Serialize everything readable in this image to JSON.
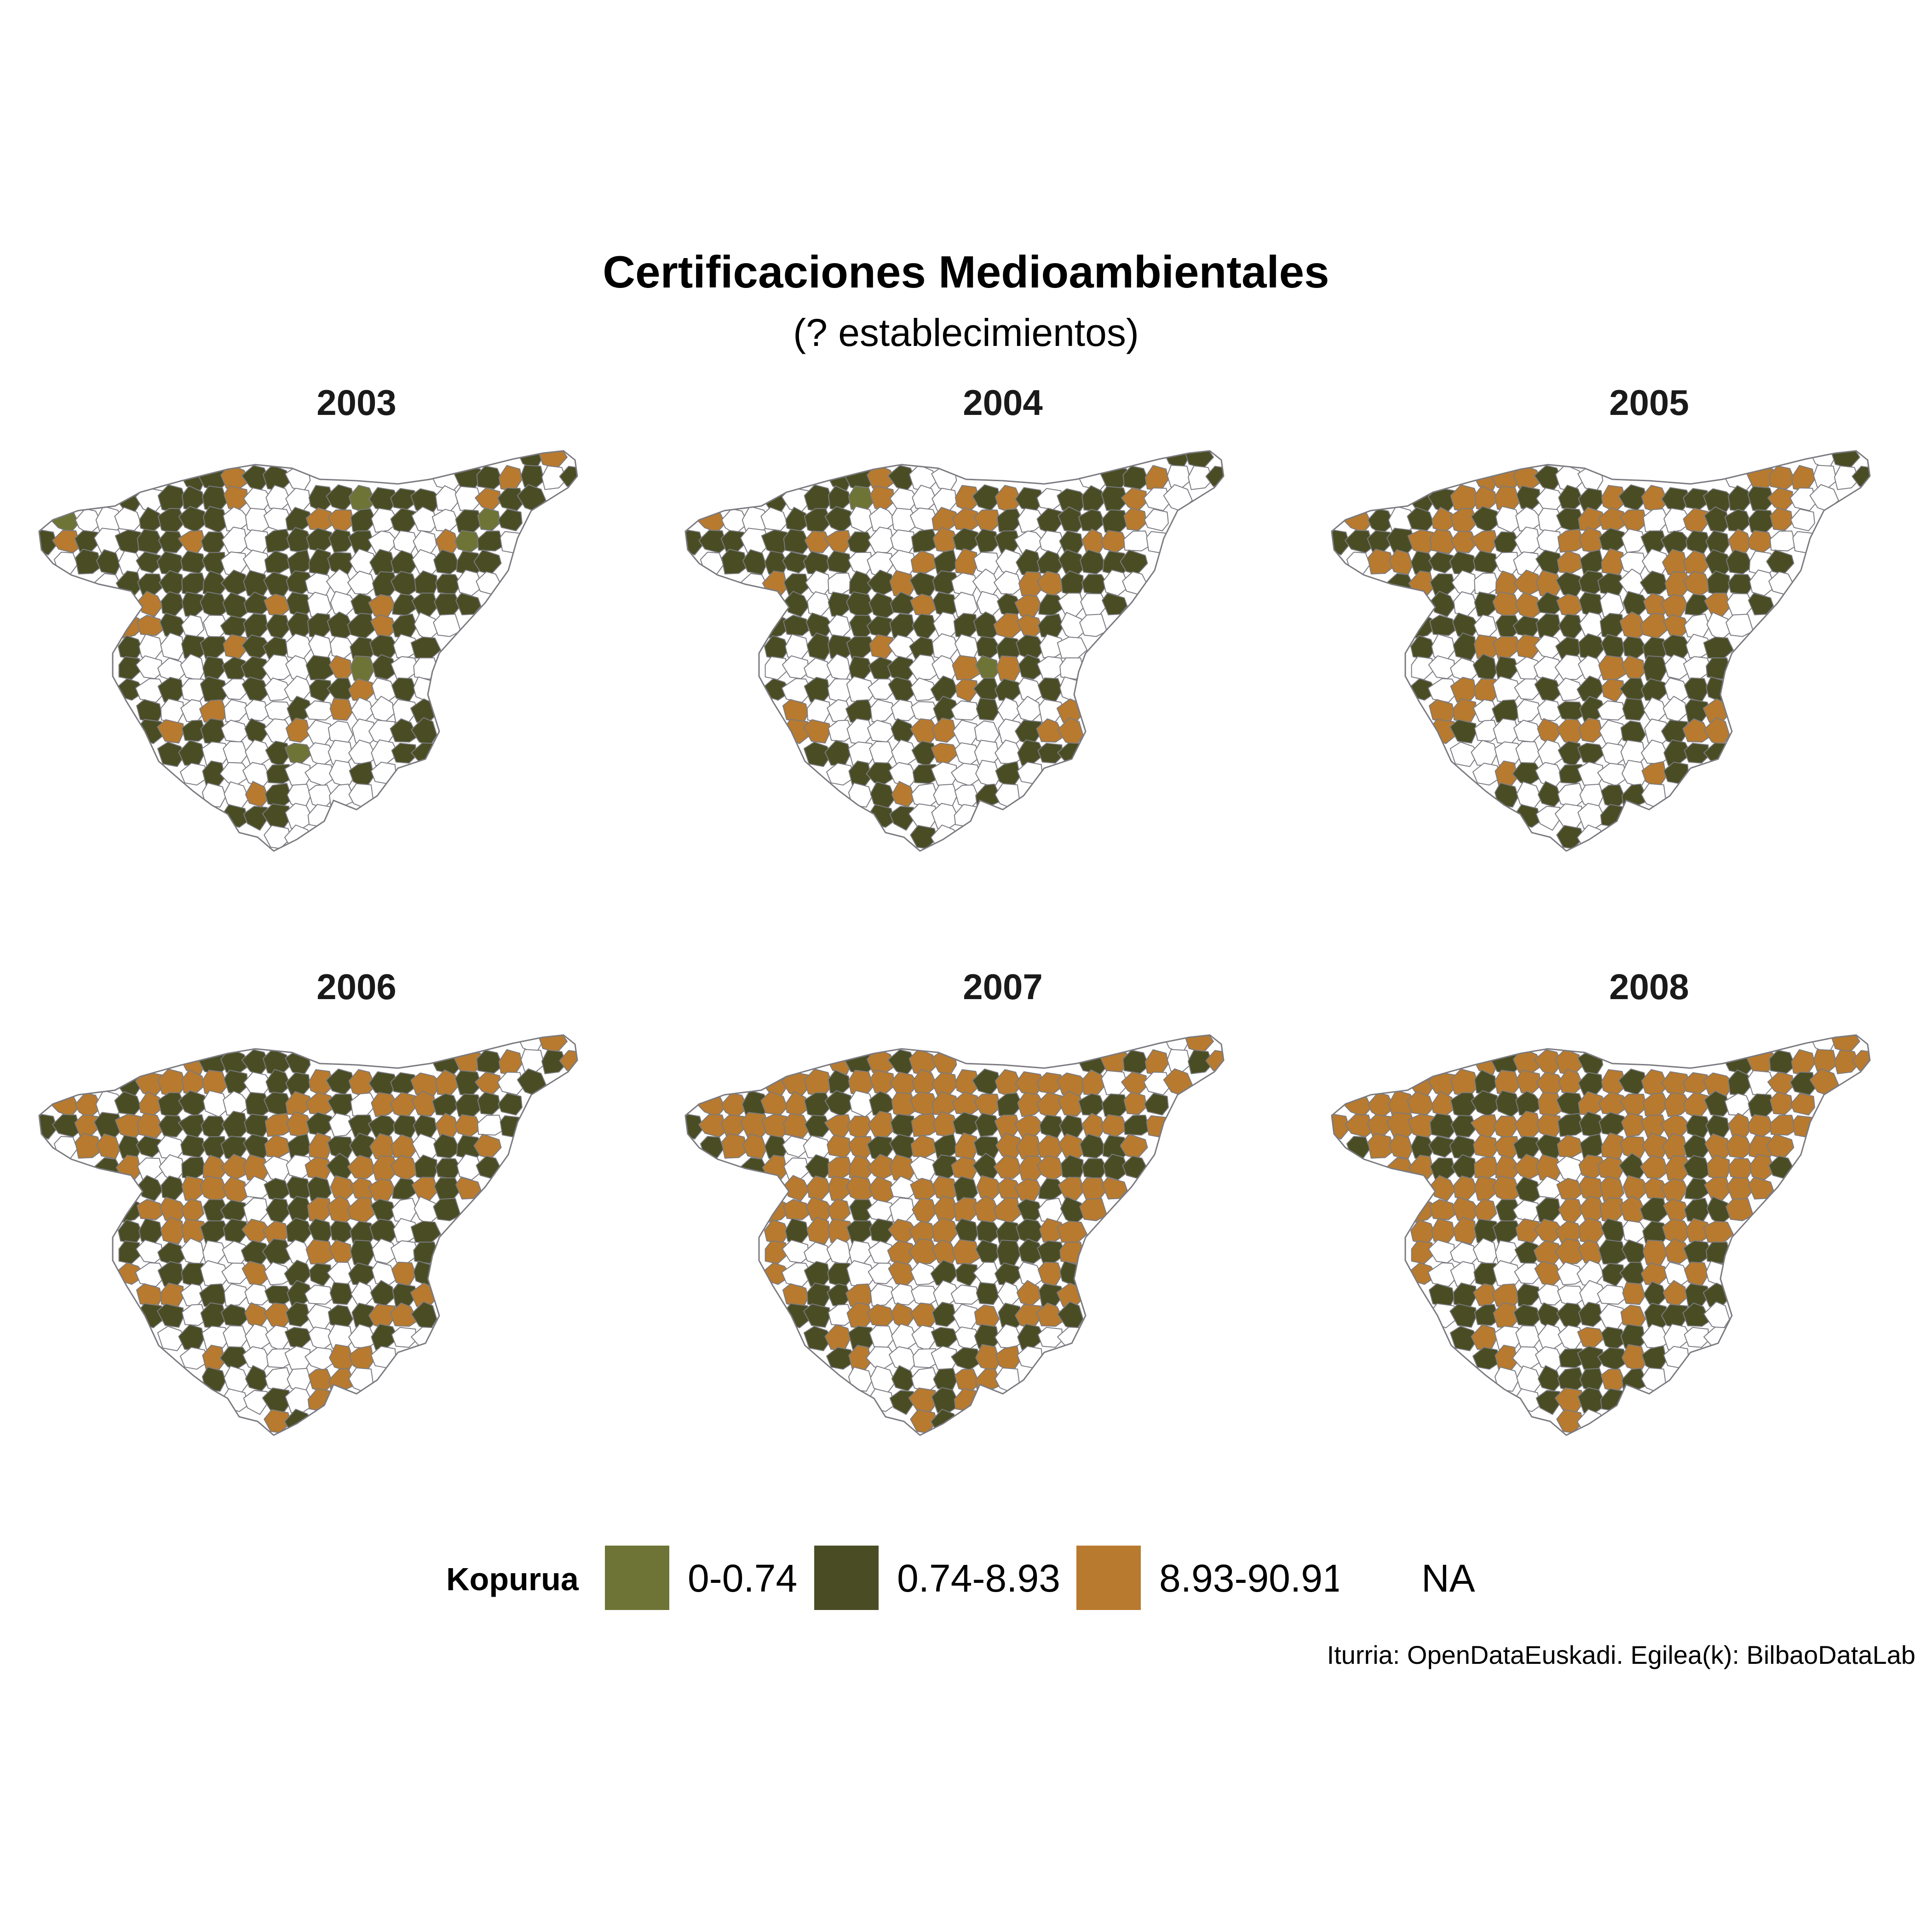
{
  "title": "Certificaciones Medioambientales",
  "subtitle": "(? establecimientos)",
  "legend": {
    "title": "Kopurua",
    "items": [
      {
        "label": "0-0.74",
        "color": "#6e7435"
      },
      {
        "label": "0.74-8.93",
        "color": "#4a4d24"
      },
      {
        "label": "8.93-90.91",
        "color": "#b87a2e"
      },
      {
        "label": "NA",
        "color": "#ffffff"
      }
    ]
  },
  "caption": "Iturria: OpenDataEuskadi. Egilea(k): BilbaoDataLab",
  "colors": {
    "low": "#6e7435",
    "mid": "#4a4d24",
    "high": "#b87a2e",
    "na": "#ffffff",
    "border": "#7a7a80"
  },
  "panels": [
    {
      "year": "2003",
      "share_high": 0.18,
      "share_mid": 0.42,
      "share_low": 0.03
    },
    {
      "year": "2004",
      "share_high": 0.22,
      "share_mid": 0.4,
      "share_low": 0.03
    },
    {
      "year": "2005",
      "share_high": 0.36,
      "share_mid": 0.34,
      "share_low": 0.01
    },
    {
      "year": "2006",
      "share_high": 0.44,
      "share_mid": 0.3,
      "share_low": 0.0
    },
    {
      "year": "2007",
      "share_high": 0.55,
      "share_mid": 0.24,
      "share_low": 0.0
    },
    {
      "year": "2008",
      "share_high": 0.58,
      "share_mid": 0.26,
      "share_low": 0.0
    }
  ]
}
